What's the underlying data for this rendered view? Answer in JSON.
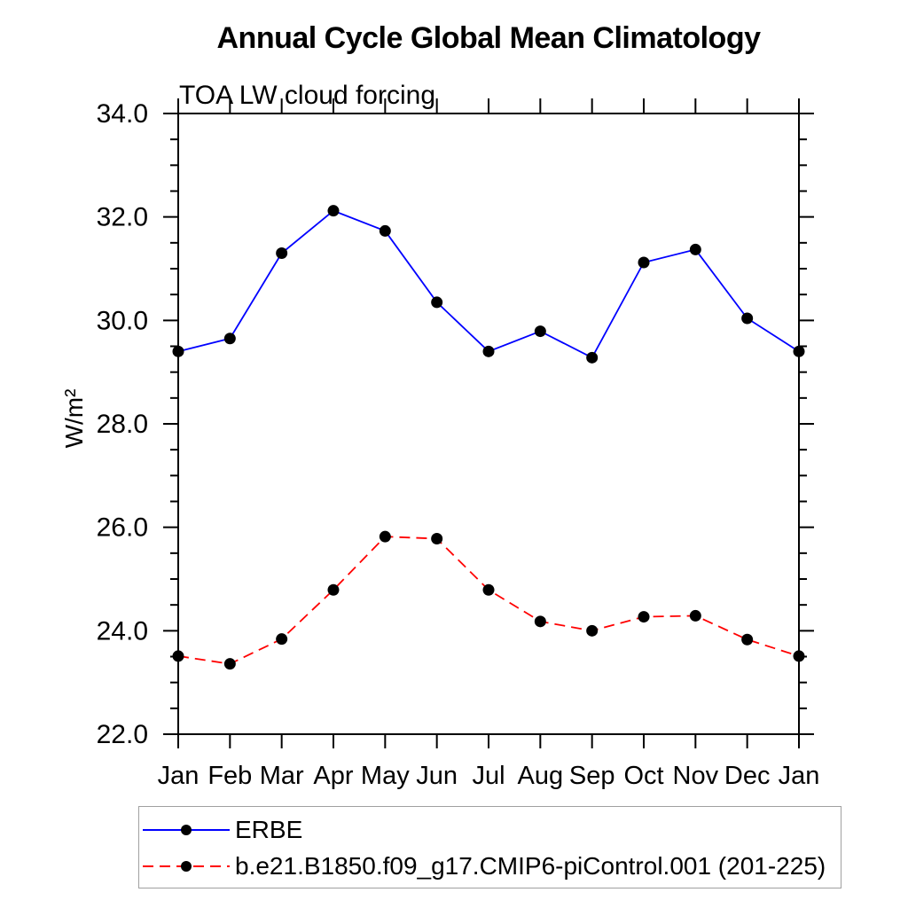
{
  "chart_data": {
    "type": "line",
    "title": "Annual Cycle Global Mean Climatology",
    "subtitle": "TOA LW cloud forcing",
    "ylabel": "W/m²",
    "xlabel": "",
    "x_categories": [
      "Jan",
      "Feb",
      "Mar",
      "Apr",
      "May",
      "Jun",
      "Jul",
      "Aug",
      "Sep",
      "Oct",
      "Nov",
      "Dec",
      "Jan"
    ],
    "ylim": [
      22.0,
      34.0
    ],
    "ytick_major_values": [
      22,
      24,
      26,
      28,
      30,
      32,
      34
    ],
    "ytick_labels": [
      "22.0",
      "24.0",
      "26.0",
      "28.0",
      "30.0",
      "32.0",
      "34.0"
    ],
    "ytick_minor_step": 0.5,
    "grid": "off",
    "legend_position": "below-left",
    "series": [
      {
        "name": "ERBE",
        "color": "#0000ff",
        "line_style": "solid",
        "marker": "filled-circle",
        "marker_color": "#000000",
        "values": [
          29.4,
          29.65,
          31.3,
          32.12,
          31.73,
          30.35,
          29.4,
          29.79,
          29.28,
          31.12,
          31.37,
          30.04,
          29.4
        ]
      },
      {
        "name": "b.e21.B1850.f09_g17.CMIP6-piControl.001 (201-225)",
        "color": "#ff0000",
        "line_style": "dashed",
        "marker": "filled-circle",
        "marker_color": "#000000",
        "values": [
          23.51,
          23.36,
          23.84,
          24.79,
          25.82,
          25.78,
          24.79,
          24.18,
          24.0,
          24.27,
          24.29,
          23.83,
          23.51
        ]
      }
    ]
  }
}
